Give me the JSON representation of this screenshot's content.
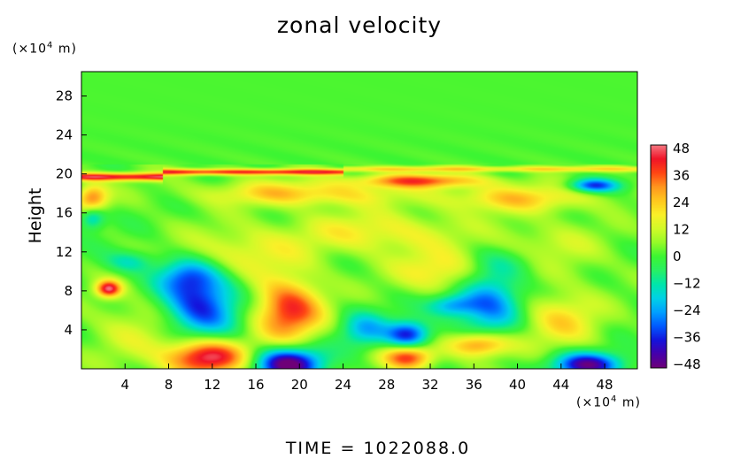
{
  "chart_data": {
    "type": "heatmap",
    "title": "zonal velocity",
    "ylabel": "Height",
    "xlabel": "",
    "x_unit": "(×10⁴ m)",
    "y_unit": "(×10⁴ m)",
    "xlim": [
      0,
      51
    ],
    "ylim": [
      0,
      30.5
    ],
    "x_ticks": [
      "4",
      "8",
      "12",
      "16",
      "20",
      "24",
      "28",
      "32",
      "36",
      "40",
      "44",
      "48"
    ],
    "x_tick_values": [
      4,
      8,
      12,
      16,
      20,
      24,
      28,
      32,
      36,
      40,
      44,
      48
    ],
    "y_ticks": [
      "4",
      "8",
      "12",
      "16",
      "20",
      "24",
      "28"
    ],
    "y_tick_values": [
      4,
      8,
      12,
      16,
      20,
      24,
      28
    ],
    "colorbar": {
      "labels": [
        "48",
        "36",
        "24",
        "12",
        "0",
        "−12",
        "−24",
        "−36",
        "−48"
      ],
      "values": [
        48,
        36,
        24,
        12,
        0,
        -12,
        -24,
        -36,
        -48
      ],
      "range": [
        -48,
        48
      ]
    },
    "features": [
      {
        "x": 19,
        "y": 6,
        "sx": 2.2,
        "sy": 2.3,
        "value": 38
      },
      {
        "x": 11,
        "y": 6.5,
        "sx": 2.4,
        "sy": 2.3,
        "value": -38
      },
      {
        "x": 9.5,
        "y": 9.5,
        "sx": 2.0,
        "sy": 1.3,
        "value": -22
      },
      {
        "x": 19,
        "y": 0.5,
        "sx": 2.2,
        "sy": 1.2,
        "value": -52
      },
      {
        "x": 11.5,
        "y": 1.2,
        "sx": 2.6,
        "sy": 1.3,
        "value": 46
      },
      {
        "x": 30,
        "y": 3.5,
        "sx": 1.4,
        "sy": 1.0,
        "value": -40
      },
      {
        "x": 26,
        "y": 4,
        "sx": 1.6,
        "sy": 1.3,
        "value": -22
      },
      {
        "x": 30,
        "y": 1.2,
        "sx": 1.6,
        "sy": 0.9,
        "value": 38
      },
      {
        "x": 37.5,
        "y": 7,
        "sx": 2.0,
        "sy": 2.6,
        "value": -30
      },
      {
        "x": 34,
        "y": 6.5,
        "sx": 1.6,
        "sy": 0.8,
        "value": -24
      },
      {
        "x": 36.5,
        "y": 2.5,
        "sx": 2.0,
        "sy": 0.9,
        "value": 34
      },
      {
        "x": 46.5,
        "y": 0.4,
        "sx": 2.2,
        "sy": 0.9,
        "value": -46
      },
      {
        "x": 2.5,
        "y": 8.2,
        "sx": 0.8,
        "sy": 0.6,
        "value": 42
      },
      {
        "x": 33,
        "y": 10,
        "sx": 3.0,
        "sy": 1.5,
        "value": 18
      },
      {
        "x": 44,
        "y": 5,
        "sx": 2.5,
        "sy": 2.0,
        "value": 18
      },
      {
        "x": 5,
        "y": 4,
        "sx": 3.0,
        "sy": 2.5,
        "value": 10
      },
      {
        "x": 15,
        "y": 12,
        "sx": 4.0,
        "sy": 1.8,
        "value": 14
      },
      {
        "x": 27,
        "y": 14,
        "sx": 5.0,
        "sy": 1.5,
        "value": 16
      },
      {
        "x": 42,
        "y": 12,
        "sx": 4.0,
        "sy": 2.0,
        "value": 12
      },
      {
        "x": 4.5,
        "y": 11,
        "sx": 1.6,
        "sy": 0.8,
        "value": -16
      },
      {
        "x": 40,
        "y": 11,
        "sx": 2.5,
        "sy": 1.2,
        "value": -12
      },
      {
        "x": 47,
        "y": 18.8,
        "sx": 1.6,
        "sy": 0.5,
        "value": -36
      },
      {
        "x": 31,
        "y": 19.3,
        "sx": 4.0,
        "sy": 0.5,
        "value": 32
      },
      {
        "x": 20,
        "y": 18,
        "sx": 6.0,
        "sy": 0.9,
        "value": 22
      },
      {
        "x": 40,
        "y": 17.5,
        "sx": 5.0,
        "sy": 1.0,
        "value": 20
      },
      {
        "x": 1,
        "y": 17.5,
        "sx": 1.0,
        "sy": 1.0,
        "value": 30
      },
      {
        "x": 1,
        "y": 15.5,
        "sx": 0.8,
        "sy": 0.8,
        "value": -22
      }
    ],
    "bands": [
      {
        "x0": 0,
        "x1": 7.5,
        "y": 19.7,
        "sy": 0.28,
        "value": 40
      },
      {
        "x0": 7.5,
        "x1": 24,
        "y": 20.2,
        "sy": 0.22,
        "value": 36
      },
      {
        "x0": 24,
        "x1": 51,
        "y": 20.5,
        "sy": 0.2,
        "value": 18
      }
    ]
  },
  "footer": {
    "label": "TIME",
    "eq": "=",
    "value": "1022088.0"
  }
}
